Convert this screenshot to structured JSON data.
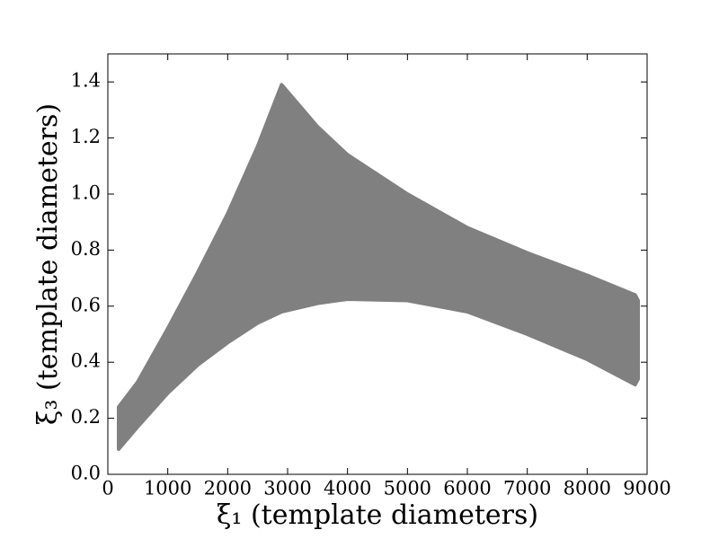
{
  "chart_data": {
    "type": "area",
    "x_label": "ξ₁ (template diameters)",
    "y_label": "ξ₃ (template diameters)",
    "x": [
      180,
      500,
      1000,
      1500,
      2000,
      2500,
      2900,
      3500,
      4000,
      5000,
      6000,
      7000,
      8000,
      8800,
      8850
    ],
    "y_upper": [
      0.24,
      0.33,
      0.52,
      0.72,
      0.93,
      1.17,
      1.39,
      1.24,
      1.14,
      1.0,
      0.88,
      0.79,
      0.71,
      0.64,
      0.62
    ],
    "y_lower": [
      0.09,
      0.17,
      0.29,
      0.39,
      0.47,
      0.54,
      0.58,
      0.61,
      0.625,
      0.62,
      0.58,
      0.5,
      0.41,
      0.32,
      0.34
    ],
    "color": "#808080",
    "xlim": [
      0,
      9000
    ],
    "ylim": [
      0,
      1.5
    ],
    "xticks": [
      0,
      1000,
      2000,
      3000,
      4000,
      5000,
      6000,
      7000,
      8000,
      9000
    ],
    "yticks": [
      {
        "value": 0,
        "label": "0.0"
      },
      0.2,
      0.4,
      0.6,
      0.8,
      {
        "value": 1,
        "label": "1.0"
      },
      1.2,
      1.4
    ]
  }
}
